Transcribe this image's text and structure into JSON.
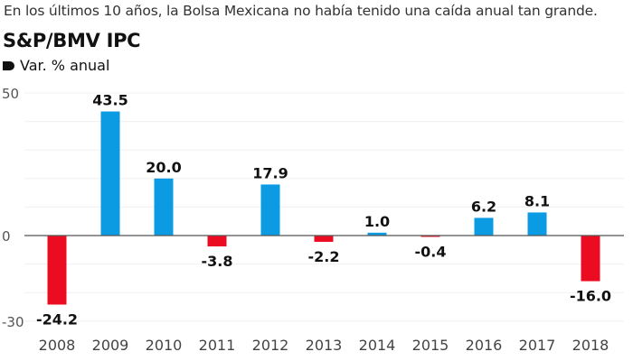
{
  "subtitle": "En los últimos 10 años, la Bolsa Mexicana no había tenido una caída anual tan grande.",
  "chart_data": {
    "type": "bar",
    "title": "S&P/BMV IPC",
    "legend": "Var. % anual",
    "legend_placement": "top-left",
    "categories": [
      "2008",
      "2009",
      "2010",
      "2011",
      "2012",
      "2013",
      "2014",
      "2015",
      "2016",
      "2017",
      "2018"
    ],
    "values": [
      -24.2,
      43.5,
      20.0,
      -3.8,
      17.9,
      -2.2,
      1.0,
      -0.4,
      6.2,
      8.1,
      -16.0
    ],
    "value_labels": [
      "-24.2",
      "43.5",
      "20.0",
      "-3.8",
      "17.9",
      "-2.2",
      "1.0",
      "-0.4",
      "6.2",
      "8.1",
      "-16.0"
    ],
    "yticks": [
      50,
      0,
      -30
    ],
    "ytick_labels": [
      "50",
      "0",
      "-30"
    ],
    "ylim": [
      -30,
      50
    ],
    "grid": true,
    "colors": {
      "positive": "#0b9be3",
      "negative": "#ec0c22"
    }
  }
}
